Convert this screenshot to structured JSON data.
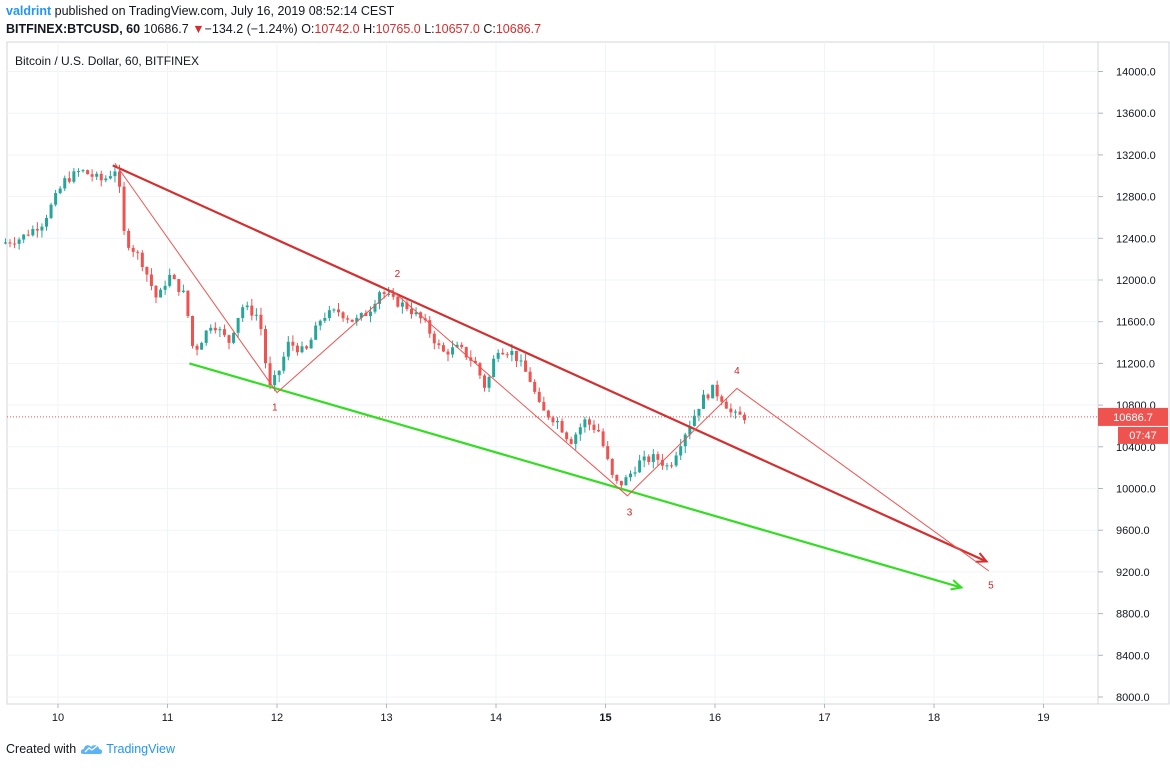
{
  "header": {
    "author": "valdrint",
    "published_text": " published on TradingView.com, July 16, 2019 08:52:14 CEST",
    "symbol": "BITFINEX:BTCUSD, 60",
    "last": "10686.7",
    "change_arrow": "▼",
    "change": "−134.2 (−1.24%)",
    "o_label": "O:",
    "o_value": "10742.0",
    "h_label": "H:",
    "h_value": "10765.0",
    "l_label": "L:",
    "l_value": "10657.0",
    "c_label": "C:",
    "c_value": "10686.7"
  },
  "footer": {
    "created_with": "Created with",
    "brand": "TradingView",
    "brand_icon": "tradingview-cloud-icon"
  },
  "colors": {
    "up": "#26a69a",
    "down": "#ef5350",
    "red_line": "#d32f2f",
    "green_line": "#33dd22",
    "wave": "#ef5350",
    "last_price_bg": "#ef5350",
    "header_author": "#2196f3"
  },
  "chart_data": {
    "type": "candlestick",
    "title": "Bitcoin / U.S. Dollar, 60, BITFINEX",
    "x_ticks": [
      "10",
      "11",
      "12",
      "13",
      "14",
      "15",
      "16",
      "17",
      "18",
      "19"
    ],
    "x_tick_days": [
      10,
      11,
      12,
      13,
      14,
      15,
      16,
      17,
      18,
      19
    ],
    "bold_x_tick": "15",
    "x_range_days": [
      9.52,
      19.5
    ],
    "y_ticks": [
      8000,
      8400,
      8800,
      9200,
      9600,
      10000,
      10400,
      10800,
      11200,
      11600,
      12000,
      12400,
      12800,
      13200,
      13600,
      14000
    ],
    "y_tick_labels": [
      "8000.0",
      "8400.0",
      "8800.0",
      "9200.0",
      "9600.0",
      "10000.0",
      "10400.0",
      "10800.0",
      "11200.0",
      "11600.0",
      "12000.0",
      "12400.0",
      "12800.0",
      "13200.0",
      "13600.0",
      "14000.0"
    ],
    "ylim": [
      7900,
      14300
    ],
    "last_price": 10686.7,
    "last_price_label": "10686.7",
    "countdown_label": "07:47",
    "price_path": [
      [
        9.52,
        12350
      ],
      [
        9.7,
        12400
      ],
      [
        9.9,
        12550
      ],
      [
        10.1,
        12950
      ],
      [
        10.25,
        13050
      ],
      [
        10.45,
        12950
      ],
      [
        10.58,
        13080
      ],
      [
        10.65,
        12400
      ],
      [
        10.8,
        12200
      ],
      [
        10.95,
        11800
      ],
      [
        11.05,
        12050
      ],
      [
        11.2,
        11850
      ],
      [
        11.28,
        11300
      ],
      [
        11.45,
        11600
      ],
      [
        11.6,
        11400
      ],
      [
        11.72,
        11750
      ],
      [
        11.88,
        11650
      ],
      [
        11.97,
        10950
      ],
      [
        12.05,
        11100
      ],
      [
        12.15,
        11400
      ],
      [
        12.3,
        11300
      ],
      [
        12.45,
        11650
      ],
      [
        12.6,
        11700
      ],
      [
        12.75,
        11600
      ],
      [
        12.88,
        11700
      ],
      [
        12.98,
        11900
      ],
      [
        13.1,
        11800
      ],
      [
        13.22,
        11750
      ],
      [
        13.38,
        11600
      ],
      [
        13.55,
        11300
      ],
      [
        13.7,
        11350
      ],
      [
        13.85,
        11200
      ],
      [
        13.95,
        10950
      ],
      [
        14.05,
        11350
      ],
      [
        14.2,
        11300
      ],
      [
        14.35,
        11050
      ],
      [
        14.45,
        10750
      ],
      [
        14.6,
        10650
      ],
      [
        14.72,
        10450
      ],
      [
        14.85,
        10650
      ],
      [
        14.98,
        10550
      ],
      [
        15.05,
        10300
      ],
      [
        15.12,
        10050
      ],
      [
        15.2,
        10050
      ],
      [
        15.35,
        10250
      ],
      [
        15.5,
        10300
      ],
      [
        15.62,
        10200
      ],
      [
        15.75,
        10500
      ],
      [
        15.85,
        10700
      ],
      [
        15.92,
        10850
      ],
      [
        16.02,
        10950
      ],
      [
        16.12,
        10850
      ],
      [
        16.2,
        10700
      ],
      [
        16.3,
        10690
      ]
    ],
    "channel_lines": [
      {
        "color": "red",
        "from": [
          10.5,
          13100
        ],
        "to": [
          18.48,
          9300
        ]
      },
      {
        "color": "green",
        "from": [
          11.2,
          11200
        ],
        "to": [
          18.25,
          9050
        ]
      }
    ],
    "wave_path": [
      [
        10.52,
        13120
      ],
      [
        12.0,
        10920
      ],
      [
        13.05,
        11900
      ],
      [
        15.2,
        9930
      ],
      [
        16.2,
        10960
      ],
      [
        18.5,
        9210
      ]
    ],
    "wave_labels": [
      {
        "text": "1",
        "x": 11.98,
        "y": 10750
      },
      {
        "text": "2",
        "x": 13.1,
        "y": 12030
      },
      {
        "text": "3",
        "x": 15.22,
        "y": 9740
      },
      {
        "text": "4",
        "x": 16.2,
        "y": 11100
      },
      {
        "text": "5",
        "x": 18.52,
        "y": 9040
      }
    ]
  }
}
